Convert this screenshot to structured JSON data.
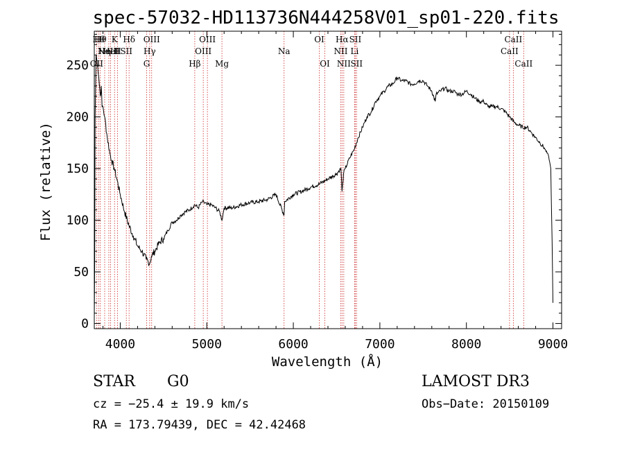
{
  "chart_data": {
    "type": "line",
    "title": "spec-57032-HD113736N444258V01_sp01-220.fits",
    "xlabel": "Wavelength (Å)",
    "ylabel": "Flux (relative)",
    "xlim": [
      3700,
      9100
    ],
    "ylim": [
      -5,
      283
    ],
    "xticks": [
      4000,
      5000,
      6000,
      7000,
      8000,
      9000
    ],
    "yticks": [
      0,
      50,
      100,
      150,
      200,
      250
    ],
    "series": [
      {
        "name": "flux",
        "x": [
          3700,
          3705,
          3710,
          3720,
          3730,
          3740,
          3750,
          3760,
          3770,
          3780,
          3790,
          3800,
          3820,
          3850,
          3880,
          3900,
          3930,
          3960,
          4000,
          4050,
          4100,
          4150,
          4200,
          4250,
          4300,
          4340,
          4360,
          4400,
          4450,
          4500,
          4550,
          4600,
          4650,
          4700,
          4750,
          4800,
          4861,
          4900,
          4950,
          5000,
          5050,
          5100,
          5150,
          5175,
          5200,
          5300,
          5400,
          5500,
          5600,
          5700,
          5800,
          5893,
          5900,
          6000,
          6100,
          6200,
          6300,
          6400,
          6500,
          6550,
          6563,
          6580,
          6600,
          6650,
          6700,
          6750,
          6800,
          6850,
          6900,
          6950,
          7000,
          7050,
          7100,
          7150,
          7200,
          7250,
          7300,
          7350,
          7400,
          7450,
          7500,
          7550,
          7600,
          7640,
          7650,
          7700,
          7750,
          7800,
          7850,
          7900,
          7950,
          8000,
          8050,
          8100,
          8150,
          8200,
          8250,
          8300,
          8350,
          8400,
          8450,
          8500,
          8550,
          8600,
          8650,
          8700,
          8750,
          8800,
          8850,
          8900,
          8950,
          8975,
          8990,
          9000
        ],
        "y": [
          5,
          60,
          200,
          260,
          255,
          248,
          240,
          230,
          220,
          230,
          210,
          210,
          200,
          180,
          165,
          158,
          150,
          140,
          125,
          108,
          95,
          85,
          75,
          70,
          62,
          58,
          65,
          70,
          78,
          82,
          90,
          98,
          100,
          105,
          108,
          110,
          115,
          112,
          118,
          115,
          115,
          112,
          108,
          100,
          112,
          112,
          115,
          117,
          118,
          120,
          125,
          105,
          118,
          125,
          128,
          132,
          135,
          140,
          145,
          150,
          128,
          145,
          150,
          160,
          168,
          180,
          190,
          200,
          205,
          215,
          220,
          225,
          230,
          232,
          238,
          235,
          235,
          232,
          232,
          235,
          235,
          230,
          225,
          215,
          222,
          225,
          228,
          225,
          225,
          222,
          222,
          225,
          222,
          218,
          215,
          215,
          210,
          210,
          210,
          208,
          205,
          200,
          195,
          192,
          190,
          190,
          185,
          180,
          175,
          170,
          162,
          150,
          80,
          20
        ]
      }
    ],
    "spectral_lines": [
      {
        "wave": 3727,
        "label": "OII",
        "row": 2
      },
      {
        "wave": 3750,
        "label": "Hθ",
        "row": 0
      },
      {
        "wave": 3770,
        "label": "Hθ",
        "row": 0
      },
      {
        "wave": 3820,
        "label": "Hη",
        "row": 1
      },
      {
        "wave": 3868,
        "label": "NeIII",
        "row": 1
      },
      {
        "wave": 3889,
        "label": "HeI",
        "row": 1
      },
      {
        "wave": 3934,
        "label": "K",
        "row": 0
      },
      {
        "wave": 3969,
        "label": "H",
        "row": 1
      },
      {
        "wave": 4070,
        "label": "SII",
        "row": 1
      },
      {
        "wave": 4102,
        "label": "Hδ",
        "row": 0
      },
      {
        "wave": 4305,
        "label": "G",
        "row": 2
      },
      {
        "wave": 4340,
        "label": "Hγ",
        "row": 1
      },
      {
        "wave": 4363,
        "label": "OIII",
        "row": 0
      },
      {
        "wave": 4861,
        "label": "Hβ",
        "row": 2
      },
      {
        "wave": 4959,
        "label": "OIII",
        "row": 1
      },
      {
        "wave": 5007,
        "label": "OIII",
        "row": 0
      },
      {
        "wave": 5175,
        "label": "Mg",
        "row": 2
      },
      {
        "wave": 5893,
        "label": "Na",
        "row": 1
      },
      {
        "wave": 6300,
        "label": "OI",
        "row": 0
      },
      {
        "wave": 6364,
        "label": "OI",
        "row": 2
      },
      {
        "wave": 6548,
        "label": "NII",
        "row": 1
      },
      {
        "wave": 6563,
        "label": "Hα",
        "row": 0
      },
      {
        "wave": 6583,
        "label": "NII",
        "row": 2
      },
      {
        "wave": 6708,
        "label": "Li",
        "row": 1
      },
      {
        "wave": 6716,
        "label": "SII",
        "row": 0
      },
      {
        "wave": 6731,
        "label": "SII",
        "row": 2
      },
      {
        "wave": 8498,
        "label": "CaII",
        "row": 1
      },
      {
        "wave": 8542,
        "label": "CaII",
        "row": 0
      },
      {
        "wave": 8662,
        "label": "CaII",
        "row": 2
      }
    ]
  },
  "info": {
    "object_type": "STAR",
    "subclass": "G0",
    "survey": "LAMOST DR3",
    "cz": "cz = −25.4 ± 19.9 km/s",
    "obs_date": "Obs−Date: 20150109",
    "coords": "RA = 173.79439, DEC =  42.42468"
  }
}
